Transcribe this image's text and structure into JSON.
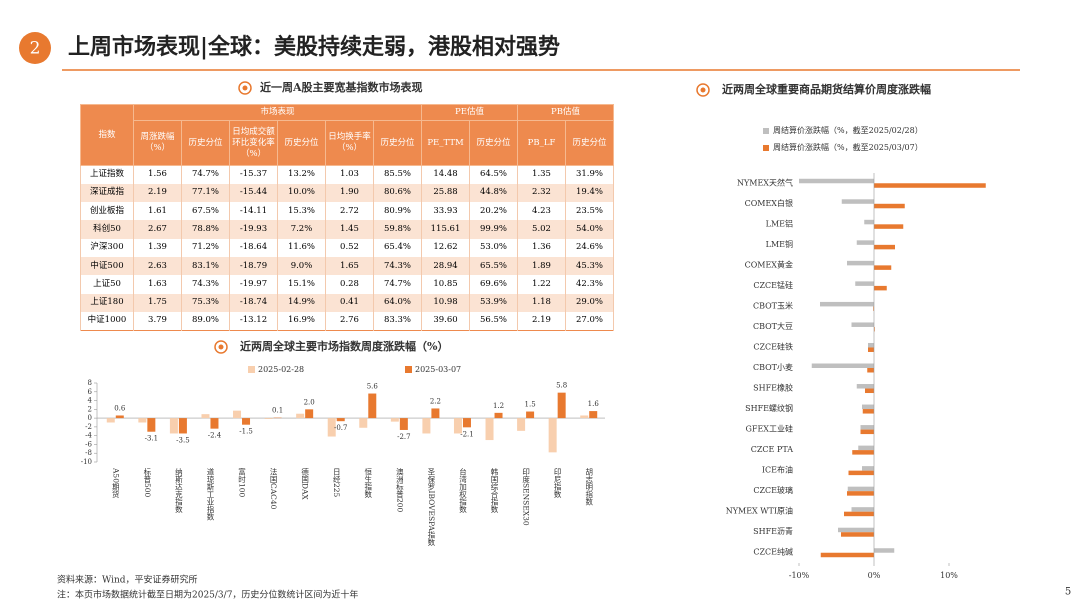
{
  "header": {
    "number": "2",
    "title": "上周市场表现|全球：美股持续走弱，港股相对强势"
  },
  "table": {
    "title": "近一周A股主要宽基指数市场表现",
    "index_header": "指数",
    "group_headers": [
      "市场表现",
      "PE估值",
      "PB估值"
    ],
    "columns": [
      "周涨跌幅（%）",
      "历史分位",
      "日均成交额环比变化率（%）",
      "历史分位",
      "日均换手率（%）",
      "历史分位",
      "PE_TTM",
      "历史分位",
      "PB_LF",
      "历史分位"
    ],
    "rows": [
      [
        "上证指数",
        "1.56",
        "74.7%",
        "-15.37",
        "13.2%",
        "1.03",
        "85.5%",
        "14.48",
        "64.5%",
        "1.35",
        "31.9%"
      ],
      [
        "深证成指",
        "2.19",
        "77.1%",
        "-15.44",
        "10.0%",
        "1.90",
        "80.6%",
        "25.88",
        "44.8%",
        "2.32",
        "19.4%"
      ],
      [
        "创业板指",
        "1.61",
        "67.5%",
        "-14.11",
        "15.3%",
        "2.72",
        "80.9%",
        "33.93",
        "20.2%",
        "4.23",
        "23.5%"
      ],
      [
        "科创50",
        "2.67",
        "78.8%",
        "-19.93",
        "7.2%",
        "1.45",
        "59.8%",
        "115.61",
        "99.9%",
        "5.02",
        "54.0%"
      ],
      [
        "沪深300",
        "1.39",
        "71.2%",
        "-18.64",
        "11.6%",
        "0.52",
        "65.4%",
        "12.62",
        "53.0%",
        "1.36",
        "24.6%"
      ],
      [
        "中证500",
        "2.63",
        "83.1%",
        "-18.79",
        "9.0%",
        "1.65",
        "74.3%",
        "28.94",
        "65.5%",
        "1.89",
        "45.3%"
      ],
      [
        "上证50",
        "1.63",
        "74.3%",
        "-19.97",
        "15.1%",
        "0.28",
        "74.7%",
        "10.85",
        "69.6%",
        "1.22",
        "42.3%"
      ],
      [
        "上证180",
        "1.75",
        "75.3%",
        "-18.74",
        "14.9%",
        "0.41",
        "64.0%",
        "10.98",
        "53.9%",
        "1.18",
        "29.0%"
      ],
      [
        "中证1000",
        "3.79",
        "89.0%",
        "-13.12",
        "16.9%",
        "2.76",
        "83.3%",
        "39.60",
        "56.5%",
        "2.19",
        "27.0%"
      ]
    ]
  },
  "chart_data": [
    {
      "type": "bar",
      "title": "近两周全球主要市场指数周度涨跌幅（%）",
      "categories": [
        "A50期货",
        "标普500",
        "纳斯达克指数",
        "道琼斯工业指数",
        "富时100",
        "法国CAC40",
        "德国DAX",
        "日经225",
        "恒生指数",
        "澳洲标普200",
        "圣保罗IBOVESPA指数",
        "台湾加权指数",
        "韩国综合指数",
        "印度SENSEX30",
        "印尼指数",
        "胡志明指数"
      ],
      "series": [
        {
          "name": "2025-02-28",
          "color": "#f8cfae",
          "values": [
            -1.0,
            -1.0,
            -3.5,
            0.9,
            1.7,
            -0.2,
            1.0,
            -4.2,
            -2.2,
            -0.8,
            -3.5,
            -3.5,
            -5.0,
            -2.9,
            -7.8,
            0.6
          ]
        },
        {
          "name": "2025-03-07",
          "color": "#e8792f",
          "values": [
            0.6,
            -3.1,
            -3.5,
            -2.4,
            -1.5,
            0.1,
            2.0,
            -0.7,
            5.6,
            -2.7,
            2.2,
            -2.1,
            1.2,
            1.5,
            5.8,
            1.6
          ],
          "value_labels": [
            "0.6",
            "-3.1",
            "-3.5",
            "-2.4",
            "-1.5",
            "0.1",
            "2.0",
            "-0.7",
            "5.6",
            "-2.7",
            "2.2",
            "-2.1",
            "1.2",
            "1.5",
            "5.8",
            "1.6"
          ]
        }
      ],
      "ylim": [
        -10,
        8
      ],
      "yticks": [
        -10,
        -8,
        -6,
        -4,
        -2,
        0,
        2,
        4,
        6,
        8
      ],
      "grid": false
    },
    {
      "type": "barh",
      "title": "近两周全球重要商品期货结算价周度涨跌幅",
      "categories": [
        "NYMEX天然气",
        "COMEX白银",
        "LME铝",
        "LME铜",
        "COMEX黄金",
        "CZCE锰硅",
        "CBOT玉米",
        "CBOT大豆",
        "CZCE硅铁",
        "CBOT小麦",
        "SHFE橡胶",
        "SHFE螺纹钢",
        "GFEX工业硅",
        "CZCE PTA",
        "ICE布油",
        "CZCE玻璃",
        "NYMEX WTI原油",
        "SHFE沥青",
        "CZCE纯碱"
      ],
      "series": [
        {
          "name": "周结算价涨跌幅（%，截至2025/02/28）",
          "color": "#bfbfbf",
          "values": [
            -10.0,
            -4.3,
            -1.3,
            -2.3,
            -3.6,
            -2.5,
            -7.2,
            -3.0,
            -0.8,
            -8.3,
            -2.3,
            -1.6,
            -1.8,
            -2.1,
            -1.6,
            -3.5,
            -3.0,
            -4.8,
            2.7
          ]
        },
        {
          "name": "周结算价涨跌幅（%，截至2025/03/07）",
          "color": "#e8792f",
          "values": [
            14.9,
            4.1,
            3.9,
            2.8,
            2.3,
            1.7,
            -0.1,
            0.1,
            -0.8,
            -0.9,
            -1.2,
            -1.5,
            -1.8,
            -2.9,
            -3.4,
            -3.6,
            -4.0,
            -4.4,
            -7.1
          ]
        }
      ],
      "xlim": [
        -10.5,
        15.5
      ],
      "xticks": [
        {
          "value": -10,
          "label": "-10%"
        },
        {
          "value": 0,
          "label": "0%"
        },
        {
          "value": 10,
          "label": "10%"
        }
      ],
      "grid": false
    }
  ],
  "footer": {
    "source": "资料来源：Wind，平安证券研究所",
    "note": "注：本页市场数据统计截至日期为2025/3/7，历史分位数统计区间为近十年",
    "page": "5"
  }
}
